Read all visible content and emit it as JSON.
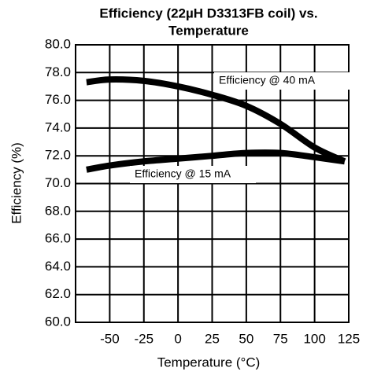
{
  "chart_data": {
    "type": "line",
    "title": [
      "Efficiency (22µH D3313FB coil) vs.",
      "Temperature"
    ],
    "xlabel": "Temperature (°C)",
    "ylabel": "Efficiency (%)",
    "x": [
      -67,
      -50,
      -25,
      0,
      25,
      50,
      75,
      100,
      122
    ],
    "series": [
      {
        "name": "Efficiency @ 40 mA",
        "color": "#000000",
        "values": [
          77.3,
          77.5,
          77.4,
          77.0,
          76.4,
          75.6,
          74.3,
          72.6,
          71.6
        ]
      },
      {
        "name": "Efficiency @ 15 mA",
        "color": "#000000",
        "values": [
          71.0,
          71.3,
          71.6,
          71.8,
          72.0,
          72.2,
          72.2,
          71.9,
          71.6
        ]
      }
    ],
    "xlim": [
      -75,
      125
    ],
    "xticks": [
      -50,
      -25,
      0,
      25,
      50,
      75,
      100,
      125
    ],
    "ylim": [
      60,
      80
    ],
    "yticks": [
      {
        "value": 60,
        "label": "60.0"
      },
      {
        "value": 62,
        "label": "62.0"
      },
      {
        "value": 64,
        "label": "64.0"
      },
      {
        "value": 66,
        "label": "66.0"
      },
      {
        "value": 68,
        "label": "68.0"
      },
      {
        "value": 70,
        "label": "70.0"
      },
      {
        "value": 72,
        "label": "72.0"
      },
      {
        "value": 74,
        "label": "74.0"
      },
      {
        "value": 76,
        "label": "76.0"
      },
      {
        "value": 78,
        "label": "78.0"
      },
      {
        "value": 80,
        "label": "80.0"
      }
    ],
    "grid": true
  }
}
